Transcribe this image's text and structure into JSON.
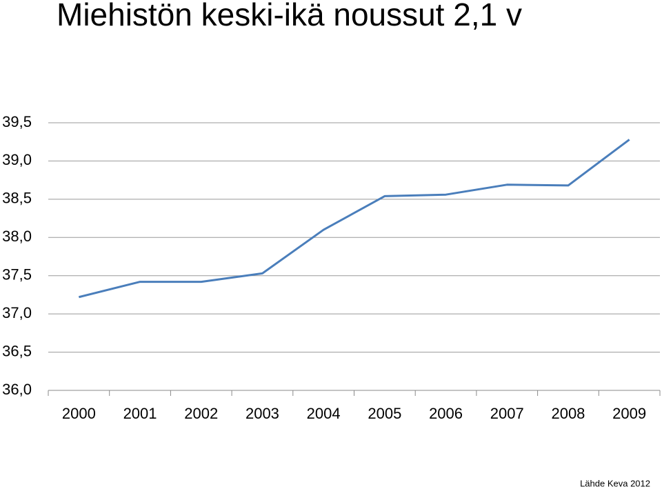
{
  "chart_data": {
    "type": "line",
    "title": "Miehistön keski-ikä noussut 2,1 v",
    "note": "Lähde Keva 2012",
    "categories": [
      "2000",
      "2001",
      "2002",
      "2003",
      "2004",
      "2005",
      "2006",
      "2007",
      "2008",
      "2009"
    ],
    "series": [
      {
        "color": "#4a7ebb",
        "values": [
          37.22,
          37.42,
          37.42,
          37.53,
          38.1,
          38.54,
          38.56,
          38.69,
          38.68,
          39.28
        ]
      }
    ],
    "ylim": [
      36.0,
      39.5
    ],
    "yticks": [
      {
        "value": 36.0,
        "label": "36,0"
      },
      {
        "value": 36.5,
        "label": "36,5"
      },
      {
        "value": 37.0,
        "label": "37,0"
      },
      {
        "value": 37.5,
        "label": "37,5"
      },
      {
        "value": 38.0,
        "label": "38,0"
      },
      {
        "value": 38.5,
        "label": "38,5"
      },
      {
        "value": 39.0,
        "label": "39,0"
      },
      {
        "value": 39.5,
        "label": "39,5"
      }
    ],
    "grid": true
  }
}
